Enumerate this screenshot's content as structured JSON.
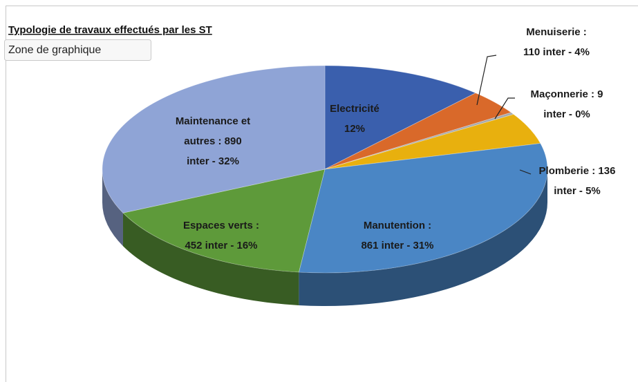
{
  "chart_data": {
    "type": "pie3d",
    "title": "Typologie de travaux effectués par les ST",
    "tooltip": "Zone de graphique",
    "values": [
      330,
      110,
      9,
      136,
      861,
      452,
      890
    ],
    "value_labels": [
      [
        "Electricité",
        "12%"
      ],
      [
        "Menuiserie :",
        "110 inter - 4%"
      ],
      [
        "Maçonnerie :  9",
        "inter - 0%"
      ],
      [
        "Plomberie : 136",
        "inter - 5%"
      ],
      [
        "Manutention :",
        "861 inter - 31%"
      ],
      [
        "Espaces verts :",
        "452 inter - 16%"
      ],
      [
        "Maintenance et",
        "autres : 890",
        "inter - 32%"
      ]
    ],
    "colors": [
      "#3a5fad",
      "#d9692a",
      "#a5a9ae",
      "#e8b00e",
      "#4a86c5",
      "#5e9a3a",
      "#8fa4d6"
    ]
  }
}
